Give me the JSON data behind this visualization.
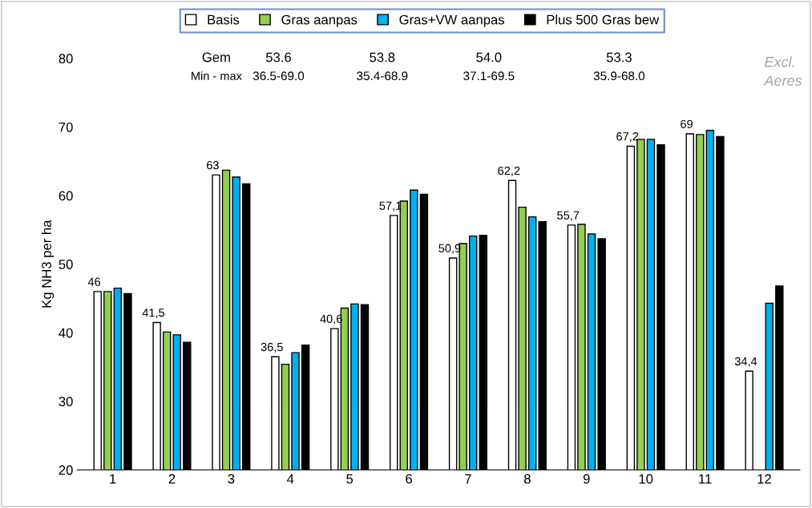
{
  "chart_data": {
    "type": "bar",
    "ylabel": "Kg NH3 per ha",
    "categories": [
      "1",
      "2",
      "3",
      "4",
      "5",
      "6",
      "7",
      "8",
      "9",
      "10",
      "11",
      "12"
    ],
    "series": [
      {
        "name": "Basis",
        "color": "#ffffff",
        "values": [
          46,
          41.5,
          63,
          36.5,
          40.6,
          57.1,
          50.9,
          62.2,
          55.7,
          67.2,
          69,
          34.4
        ],
        "value_labels": [
          "46",
          "41,5",
          "63",
          "36,5",
          "40,6",
          "57,1",
          "50,9",
          "62,2",
          "55,7",
          "67,2",
          "69",
          "34,4"
        ]
      },
      {
        "name": "Gras aanpas",
        "color": "#92d050",
        "values": [
          46.0,
          40.1,
          63.7,
          35.4,
          43.6,
          59.2,
          53.0,
          58.3,
          55.8,
          68.2,
          68.9,
          null
        ]
      },
      {
        "name": "Gras+VW aanpas",
        "color": "#00b0f0",
        "values": [
          46.5,
          39.7,
          62.7,
          37.1,
          44.2,
          60.8,
          54.1,
          56.9,
          54.4,
          68.2,
          69.5,
          44.3
        ]
      },
      {
        "name": "Plus 500 Gras bew",
        "color": "#000000",
        "values": [
          45.7,
          38.6,
          61.7,
          38.2,
          44.1,
          60.2,
          54.2,
          56.2,
          53.7,
          67.4,
          68.6,
          46.8
        ]
      }
    ],
    "ylim": [
      20,
      80
    ],
    "yticks": [
      20,
      30,
      40,
      50,
      60,
      70,
      80
    ],
    "grid": false,
    "legend": "top",
    "annotations": [
      "Gem",
      "Min - max",
      "53.6",
      "36.5-69.0",
      "53.8",
      "35.4-68.9",
      "54.0",
      "37.1-69.5",
      "53.3",
      "35.9-68.0",
      "Excl. Aeres"
    ]
  }
}
